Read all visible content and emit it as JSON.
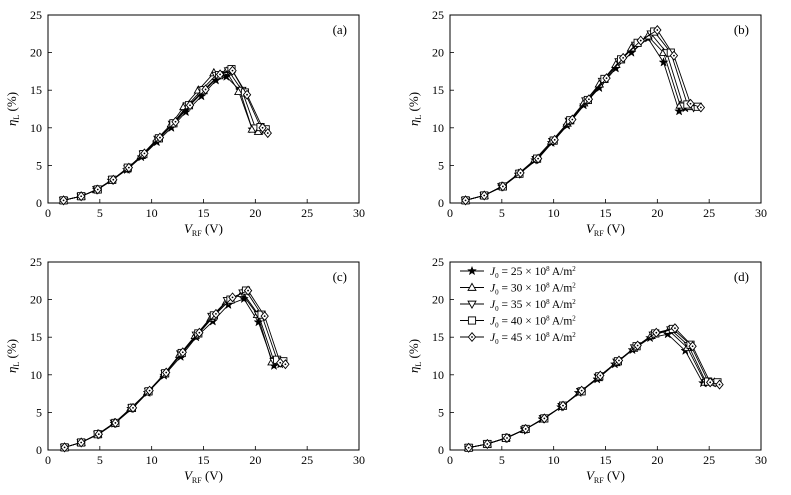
{
  "chart_data": [
    {
      "type": "line",
      "panel_label": "(a)",
      "xlabel": {
        "main": "V",
        "sub": "RF",
        "unit": "(V)"
      },
      "ylabel": {
        "main": "η",
        "sub": "L",
        "unit": "(%)"
      },
      "xlim": [
        0,
        30
      ],
      "ylim": [
        0,
        25
      ],
      "xticks": [
        0,
        5,
        10,
        15,
        20,
        25,
        30
      ],
      "yticks": [
        0,
        5,
        10,
        15,
        20,
        25
      ],
      "grid": false,
      "series": [
        {
          "marker": "star",
          "x": [
            1.5,
            3.2,
            4.7,
            6.1,
            7.6,
            9.0,
            10.5,
            11.9,
            13.3,
            14.8,
            16.2,
            17.2,
            18.5,
            19.7,
            20.2
          ],
          "y": [
            0.35,
            0.9,
            1.75,
            3.0,
            4.4,
            6.1,
            8.1,
            10.0,
            12.1,
            14.2,
            16.3,
            16.8,
            15.0,
            9.8,
            9.6
          ]
        },
        {
          "marker": "triangle-up",
          "x": [
            1.5,
            3.2,
            4.7,
            6.1,
            7.6,
            9.0,
            10.5,
            11.9,
            13.1,
            14.5,
            16.0,
            17.2,
            18.4,
            19.7,
            20.3
          ],
          "y": [
            0.35,
            0.9,
            1.75,
            3.0,
            4.5,
            6.3,
            8.5,
            10.5,
            12.8,
            15.0,
            17.3,
            17.5,
            14.8,
            9.8,
            9.5
          ]
        },
        {
          "marker": "triangle-down",
          "x": [
            1.5,
            3.2,
            4.7,
            6.2,
            7.7,
            9.2,
            10.6,
            12.0,
            13.4,
            14.8,
            16.2,
            17.4,
            18.7,
            20.0,
            20.6
          ],
          "y": [
            0.35,
            0.9,
            1.8,
            3.1,
            4.6,
            6.5,
            8.5,
            10.5,
            12.9,
            15.0,
            17.0,
            17.6,
            15.0,
            10.0,
            9.7
          ]
        },
        {
          "marker": "square",
          "x": [
            1.5,
            3.2,
            4.8,
            6.2,
            7.7,
            9.2,
            10.7,
            12.1,
            13.6,
            15.0,
            16.5,
            17.7,
            19.0,
            20.5,
            21.0
          ],
          "y": [
            0.35,
            0.9,
            1.8,
            3.1,
            4.7,
            6.5,
            8.6,
            10.6,
            13.0,
            15.0,
            17.0,
            17.8,
            14.7,
            10.1,
            9.8
          ]
        },
        {
          "marker": "diamond",
          "x": [
            1.5,
            3.2,
            4.8,
            6.3,
            7.8,
            9.3,
            10.8,
            12.3,
            13.7,
            15.2,
            16.6,
            17.8,
            19.2,
            20.7,
            21.2
          ],
          "y": [
            0.35,
            0.9,
            1.8,
            3.1,
            4.7,
            6.6,
            8.7,
            10.8,
            13.0,
            15.1,
            17.1,
            17.6,
            14.4,
            10.0,
            9.3
          ]
        }
      ]
    },
    {
      "type": "line",
      "panel_label": "(b)",
      "xlabel": {
        "main": "V",
        "sub": "RF",
        "unit": "(V)"
      },
      "ylabel": {
        "main": "η",
        "sub": "L",
        "unit": "(%)"
      },
      "xlim": [
        0,
        30
      ],
      "ylim": [
        0,
        25
      ],
      "xticks": [
        0,
        5,
        10,
        15,
        20,
        25,
        30
      ],
      "yticks": [
        0,
        5,
        10,
        15,
        20,
        25
      ],
      "grid": false,
      "series": [
        {
          "marker": "star",
          "x": [
            1.5,
            3.3,
            5.0,
            6.6,
            8.2,
            9.8,
            11.3,
            12.9,
            14.4,
            16.0,
            17.5,
            19.1,
            20.6,
            22.1,
            22.7
          ],
          "y": [
            0.35,
            1.0,
            2.2,
            3.8,
            5.7,
            8.0,
            10.3,
            13.0,
            15.3,
            17.9,
            20.0,
            21.9,
            18.7,
            12.2,
            12.6
          ]
        },
        {
          "marker": "triangle-up",
          "x": [
            1.5,
            3.3,
            5.0,
            6.6,
            8.2,
            9.8,
            11.3,
            12.9,
            14.4,
            16.0,
            17.5,
            19.1,
            20.6,
            22.2,
            23.1
          ],
          "y": [
            0.35,
            1.0,
            2.2,
            3.9,
            5.8,
            8.2,
            10.6,
            13.3,
            15.8,
            18.4,
            20.6,
            22.2,
            20.0,
            13.0,
            12.8
          ]
        },
        {
          "marker": "triangle-down",
          "x": [
            1.5,
            3.3,
            5.0,
            6.7,
            8.3,
            9.9,
            11.5,
            13.1,
            14.7,
            16.3,
            17.9,
            19.4,
            20.9,
            22.5,
            23.5
          ],
          "y": [
            0.35,
            1.0,
            2.2,
            3.9,
            5.8,
            8.2,
            10.9,
            13.6,
            16.2,
            18.8,
            21.0,
            22.5,
            20.0,
            12.9,
            12.7
          ]
        },
        {
          "marker": "square",
          "x": [
            1.5,
            3.3,
            5.1,
            6.7,
            8.4,
            10.0,
            11.6,
            13.3,
            14.9,
            16.5,
            18.1,
            19.7,
            21.3,
            22.9,
            23.9
          ],
          "y": [
            0.35,
            1.0,
            2.2,
            3.9,
            5.9,
            8.3,
            11.0,
            13.7,
            16.5,
            19.1,
            21.3,
            22.8,
            20.0,
            13.1,
            12.8
          ]
        },
        {
          "marker": "diamond",
          "x": [
            1.5,
            3.3,
            5.1,
            6.8,
            8.5,
            10.1,
            11.8,
            13.4,
            15.1,
            16.7,
            18.4,
            20.0,
            21.6,
            23.2,
            24.2
          ],
          "y": [
            0.35,
            1.0,
            2.2,
            4.0,
            5.9,
            8.4,
            11.1,
            13.8,
            16.6,
            19.3,
            21.6,
            23.0,
            19.6,
            13.2,
            12.7
          ]
        }
      ]
    },
    {
      "type": "line",
      "panel_label": "(c)",
      "xlabel": {
        "main": "V",
        "sub": "RF",
        "unit": "(V)"
      },
      "ylabel": {
        "main": "η",
        "sub": "L",
        "unit": "(%)"
      },
      "xlim": [
        0,
        30
      ],
      "ylim": [
        0,
        25
      ],
      "xticks": [
        0,
        5,
        10,
        15,
        20,
        25,
        30
      ],
      "yticks": [
        0,
        5,
        10,
        15,
        20,
        25
      ],
      "grid": false,
      "series": [
        {
          "marker": "star",
          "x": [
            1.6,
            3.2,
            4.8,
            6.4,
            8.0,
            9.6,
            11.2,
            12.8,
            14.3,
            15.9,
            17.4,
            18.9,
            20.3,
            21.8,
            22.4
          ],
          "y": [
            0.35,
            1.0,
            2.1,
            3.5,
            5.5,
            7.6,
            9.9,
            12.4,
            15.0,
            17.1,
            19.3,
            20.1,
            17.0,
            11.2,
            11.4
          ]
        },
        {
          "marker": "triangle-up",
          "x": [
            1.6,
            3.2,
            4.8,
            6.4,
            8.0,
            9.6,
            11.2,
            12.7,
            14.2,
            15.7,
            17.2,
            18.7,
            20.2,
            21.6,
            22.5
          ],
          "y": [
            0.35,
            1.0,
            2.1,
            3.6,
            5.6,
            7.7,
            10.1,
            12.7,
            15.2,
            17.5,
            19.7,
            20.8,
            18.0,
            11.7,
            11.7
          ]
        },
        {
          "marker": "triangle-down",
          "x": [
            1.6,
            3.2,
            4.8,
            6.4,
            8.1,
            9.7,
            11.3,
            12.8,
            14.3,
            15.8,
            17.3,
            18.8,
            20.3,
            21.8,
            22.6
          ],
          "y": [
            0.35,
            1.0,
            2.1,
            3.6,
            5.6,
            7.8,
            10.2,
            12.8,
            15.3,
            17.8,
            19.9,
            20.9,
            18.0,
            11.8,
            11.8
          ]
        },
        {
          "marker": "square",
          "x": [
            1.6,
            3.2,
            4.8,
            6.5,
            8.1,
            9.7,
            11.3,
            12.9,
            14.5,
            16.0,
            17.6,
            19.1,
            20.6,
            22.1,
            22.7
          ],
          "y": [
            0.35,
            1.0,
            2.1,
            3.6,
            5.6,
            7.8,
            10.2,
            12.9,
            15.5,
            17.9,
            20.0,
            21.2,
            18.0,
            12.0,
            11.8
          ]
        },
        {
          "marker": "diamond",
          "x": [
            1.6,
            3.2,
            4.9,
            6.5,
            8.2,
            9.8,
            11.4,
            13.0,
            14.6,
            16.2,
            17.8,
            19.3,
            20.9,
            22.4,
            22.9
          ],
          "y": [
            0.35,
            1.0,
            2.1,
            3.6,
            5.6,
            7.9,
            10.3,
            13.0,
            15.6,
            18.1,
            20.3,
            21.2,
            17.8,
            11.6,
            11.4
          ]
        }
      ]
    },
    {
      "type": "line",
      "panel_label": "(d)",
      "xlabel": {
        "main": "V",
        "sub": "RF",
        "unit": "(V)"
      },
      "ylabel": {
        "main": "η",
        "sub": "L",
        "unit": "(%)"
      },
      "xlim": [
        0,
        30
      ],
      "ylim": [
        0,
        25
      ],
      "xticks": [
        0,
        5,
        10,
        15,
        20,
        25,
        30
      ],
      "yticks": [
        0,
        5,
        10,
        15,
        20,
        25
      ],
      "grid": false,
      "legend": {
        "placement": "top-left",
        "entries": [
          {
            "marker": "star",
            "symbol": "J",
            "sub": "0",
            "text": "= 25 × 10",
            "sup": "8",
            "unit": "A/m",
            "unit_sup": "2"
          },
          {
            "marker": "triangle-up",
            "symbol": "J",
            "sub": "0",
            "text": "= 30 × 10",
            "sup": "8",
            "unit": "A/m",
            "unit_sup": "2"
          },
          {
            "marker": "triangle-down",
            "symbol": "J",
            "sub": "0",
            "text": "= 35 × 10",
            "sup": "8",
            "unit": "A/m",
            "unit_sup": "2"
          },
          {
            "marker": "square",
            "symbol": "J",
            "sub": "0",
            "text": "= 40 × 10",
            "sup": "8",
            "unit": "A/m",
            "unit_sup": "2"
          },
          {
            "marker": "diamond",
            "symbol": "J",
            "sub": "0",
            "text": "= 45 × 10",
            "sup": "8",
            "unit": "A/m",
            "unit_sup": "2"
          }
        ]
      },
      "series": [
        {
          "marker": "star",
          "x": [
            1.8,
            3.6,
            5.4,
            7.2,
            8.9,
            10.7,
            12.4,
            14.2,
            15.9,
            17.6,
            19.3,
            21.0,
            22.7,
            24.4,
            25.3
          ],
          "y": [
            0.3,
            0.8,
            1.6,
            2.7,
            4.1,
            5.7,
            7.6,
            9.4,
            11.4,
            13.3,
            14.9,
            15.4,
            13.2,
            8.9,
            8.9
          ]
        },
        {
          "marker": "triangle-up",
          "x": [
            1.8,
            3.6,
            5.4,
            7.2,
            9.0,
            10.8,
            12.5,
            14.3,
            16.0,
            17.7,
            19.4,
            21.1,
            22.9,
            24.6,
            25.5
          ],
          "y": [
            0.3,
            0.8,
            1.6,
            2.7,
            4.1,
            5.8,
            7.7,
            9.6,
            11.6,
            13.5,
            15.2,
            15.9,
            13.6,
            9.0,
            9.0
          ]
        },
        {
          "marker": "triangle-down",
          "x": [
            1.8,
            3.6,
            5.4,
            7.2,
            9.0,
            10.8,
            12.6,
            14.3,
            16.1,
            17.8,
            19.6,
            21.3,
            23.0,
            24.7,
            25.6
          ],
          "y": [
            0.3,
            0.8,
            1.6,
            2.7,
            4.2,
            5.8,
            7.8,
            9.7,
            11.7,
            13.6,
            15.3,
            16.0,
            13.9,
            9.0,
            9.0
          ]
        },
        {
          "marker": "square",
          "x": [
            1.8,
            3.6,
            5.4,
            7.3,
            9.1,
            10.9,
            12.7,
            14.4,
            16.2,
            18.0,
            19.8,
            21.5,
            23.2,
            24.9,
            25.8
          ],
          "y": [
            0.3,
            0.8,
            1.6,
            2.8,
            4.2,
            5.9,
            7.8,
            9.8,
            11.8,
            13.8,
            15.5,
            16.1,
            14.0,
            9.1,
            9.0
          ]
        },
        {
          "marker": "diamond",
          "x": [
            1.8,
            3.6,
            5.5,
            7.3,
            9.1,
            10.9,
            12.7,
            14.5,
            16.3,
            18.1,
            19.9,
            21.7,
            23.4,
            25.1,
            26.0
          ],
          "y": [
            0.3,
            0.8,
            1.6,
            2.8,
            4.2,
            5.9,
            7.9,
            9.9,
            11.9,
            13.9,
            15.6,
            16.2,
            13.8,
            9.0,
            8.7
          ]
        }
      ]
    }
  ]
}
